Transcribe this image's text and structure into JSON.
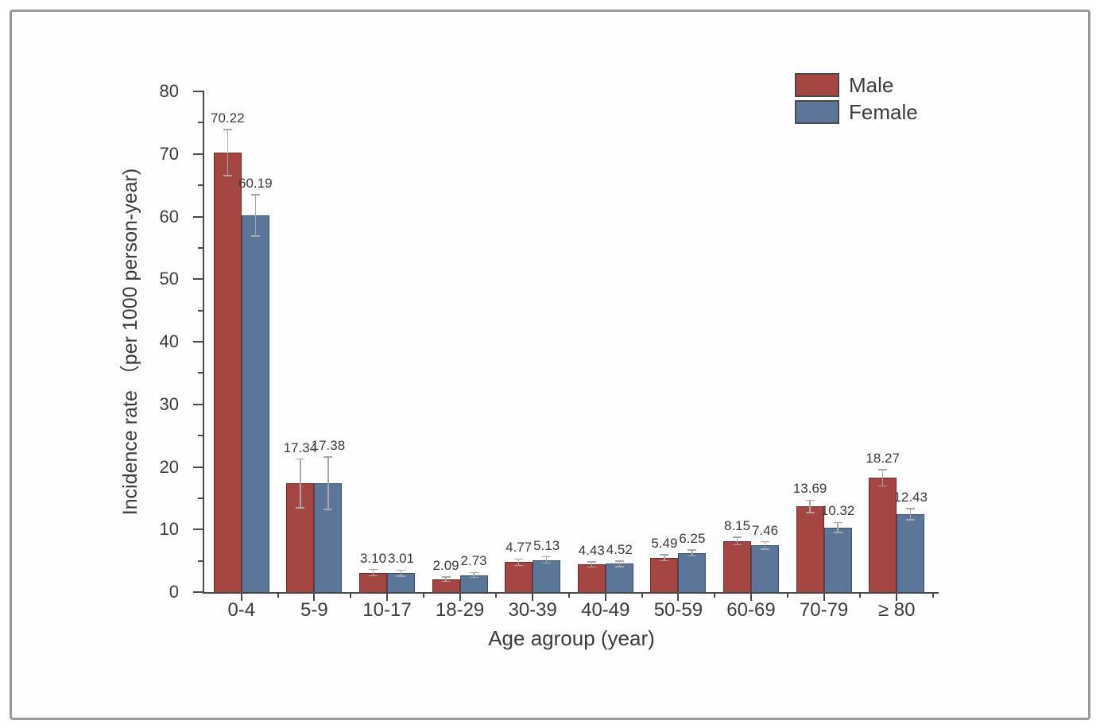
{
  "frame": {
    "border_color": "#9a9a9a",
    "background": "#ffffff"
  },
  "colors": {
    "axis": "#4a4a4a",
    "text": "#3c3c3c",
    "error_bar": "#a8a8a8",
    "male_fill": "#a54642",
    "male_edge": "#6e2b27",
    "female_fill": "#5b7699",
    "female_edge": "#39536f"
  },
  "chart_data": {
    "type": "bar",
    "title": "",
    "xlabel": "Age agroup (year)",
    "ylabel": "Incidence rate （per 1000 person-year)",
    "categories": [
      "0-4",
      "5-9",
      "10-17",
      "18-29",
      "30-39",
      "40-49",
      "50-59",
      "60-69",
      "70-79",
      "≥ 80"
    ],
    "series": [
      {
        "name": "Male",
        "color": "#a54642",
        "edge_color": "#6e2b27",
        "values": [
          70.22,
          17.34,
          3.1,
          2.09,
          4.77,
          4.43,
          5.49,
          8.15,
          13.69,
          18.27
        ],
        "labels": [
          "70.22",
          "17.34",
          "3.10",
          "2.09",
          "4.77",
          "4.43",
          "5.49",
          "8.15",
          "13.69",
          "18.27"
        ],
        "errors": [
          3.7,
          3.9,
          0.5,
          0.35,
          0.5,
          0.4,
          0.5,
          0.6,
          1.0,
          1.3
        ]
      },
      {
        "name": "Female",
        "color": "#5b7699",
        "edge_color": "#39536f",
        "values": [
          60.19,
          17.38,
          3.01,
          2.73,
          5.13,
          4.52,
          6.25,
          7.46,
          10.32,
          12.43
        ],
        "labels": [
          "60.19",
          "17.38",
          "3.01",
          "2.73",
          "5.13",
          "4.52",
          "6.25",
          "7.46",
          "10.32",
          "12.43"
        ],
        "errors": [
          3.3,
          4.2,
          0.5,
          0.4,
          0.5,
          0.45,
          0.5,
          0.6,
          0.8,
          0.9
        ]
      }
    ],
    "ylim": [
      0,
      80
    ],
    "yticks": [
      0,
      10,
      20,
      30,
      40,
      50,
      60,
      70,
      80
    ],
    "minor_tick_step": 5,
    "grid": false,
    "legend_position": "top-right",
    "error_bars": true
  }
}
